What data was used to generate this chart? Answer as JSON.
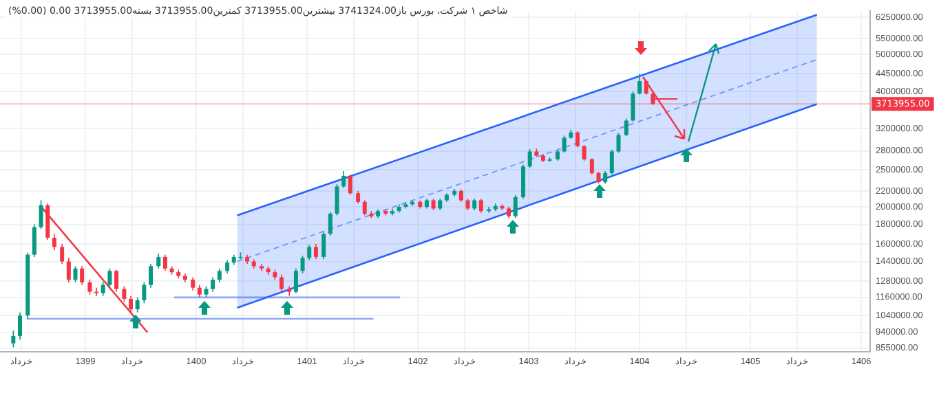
{
  "chart_data": {
    "type": "candlestick",
    "title": "شاخص ۱ شرکت، بورس باز3741324.00 بیشترین3713955.00 کمترین3713955.00 بسته3713955.00 0.00 (0.00%)",
    "x": [
      1398.35,
      1398.41,
      1398.48,
      1398.54,
      1398.6,
      1398.66,
      1398.72,
      1398.79,
      1398.85,
      1398.91,
      1398.97,
      1399.04,
      1399.1,
      1399.16,
      1399.22,
      1399.28,
      1399.35,
      1399.41,
      1399.47,
      1399.53,
      1399.59,
      1399.66,
      1399.72,
      1399.78,
      1399.84,
      1399.9,
      1399.97,
      1400.03,
      1400.09,
      1400.15,
      1400.21,
      1400.28,
      1400.34,
      1400.4,
      1400.46,
      1400.52,
      1400.59,
      1400.65,
      1400.71,
      1400.77,
      1400.84,
      1400.9,
      1400.96,
      1401.02,
      1401.08,
      1401.15,
      1401.21,
      1401.27,
      1401.33,
      1401.39,
      1401.46,
      1401.52,
      1401.58,
      1401.64,
      1401.71,
      1401.77,
      1401.83,
      1401.89,
      1401.95,
      1402.02,
      1402.08,
      1402.14,
      1402.2,
      1402.26,
      1402.33,
      1402.39,
      1402.45,
      1402.51,
      1402.57,
      1402.64,
      1402.7,
      1402.76,
      1402.82,
      1402.88,
      1402.95,
      1403.01,
      1403.07,
      1403.13,
      1403.19,
      1403.26,
      1403.32,
      1403.38,
      1403.44,
      1403.5,
      1403.57,
      1403.63,
      1403.69,
      1403.75,
      1403.81,
      1403.88,
      1403.94,
      1404.0,
      1404.06,
      1404.12
    ],
    "ohlc": [
      [
        880000,
        950000,
        860000,
        920000
      ],
      [
        920000,
        1060000,
        900000,
        1040000
      ],
      [
        1040000,
        1520000,
        1020000,
        1500000
      ],
      [
        1500000,
        1800000,
        1480000,
        1770000
      ],
      [
        1770000,
        2080000,
        1750000,
        2020000
      ],
      [
        2020000,
        2040000,
        1640000,
        1660000
      ],
      [
        1660000,
        1700000,
        1540000,
        1570000
      ],
      [
        1570000,
        1600000,
        1420000,
        1440000
      ],
      [
        1440000,
        1470000,
        1270000,
        1290000
      ],
      [
        1290000,
        1400000,
        1270000,
        1380000
      ],
      [
        1380000,
        1400000,
        1250000,
        1270000
      ],
      [
        1270000,
        1290000,
        1180000,
        1200000
      ],
      [
        1200000,
        1230000,
        1170000,
        1190000
      ],
      [
        1190000,
        1270000,
        1170000,
        1250000
      ],
      [
        1250000,
        1380000,
        1230000,
        1360000
      ],
      [
        1360000,
        1370000,
        1200000,
        1220000
      ],
      [
        1220000,
        1240000,
        1130000,
        1150000
      ],
      [
        1150000,
        1170000,
        1060000,
        1080000
      ],
      [
        1080000,
        1160000,
        1060000,
        1140000
      ],
      [
        1140000,
        1270000,
        1120000,
        1250000
      ],
      [
        1250000,
        1420000,
        1230000,
        1400000
      ],
      [
        1400000,
        1510000,
        1380000,
        1480000
      ],
      [
        1480000,
        1500000,
        1360000,
        1380000
      ],
      [
        1380000,
        1400000,
        1330000,
        1350000
      ],
      [
        1350000,
        1370000,
        1300000,
        1320000
      ],
      [
        1320000,
        1340000,
        1270000,
        1290000
      ],
      [
        1290000,
        1310000,
        1210000,
        1230000
      ],
      [
        1230000,
        1250000,
        1160000,
        1180000
      ],
      [
        1180000,
        1240000,
        1160000,
        1220000
      ],
      [
        1220000,
        1310000,
        1200000,
        1290000
      ],
      [
        1290000,
        1380000,
        1270000,
        1360000
      ],
      [
        1360000,
        1450000,
        1340000,
        1430000
      ],
      [
        1430000,
        1500000,
        1410000,
        1480000
      ],
      [
        1480000,
        1520000,
        1460000,
        1480000
      ],
      [
        1480000,
        1500000,
        1420000,
        1440000
      ],
      [
        1440000,
        1460000,
        1380000,
        1400000
      ],
      [
        1400000,
        1420000,
        1360000,
        1380000
      ],
      [
        1380000,
        1400000,
        1330000,
        1350000
      ],
      [
        1350000,
        1370000,
        1290000,
        1310000
      ],
      [
        1310000,
        1330000,
        1200000,
        1220000
      ],
      [
        1220000,
        1240000,
        1170000,
        1200000
      ],
      [
        1200000,
        1380000,
        1190000,
        1360000
      ],
      [
        1360000,
        1490000,
        1340000,
        1470000
      ],
      [
        1470000,
        1590000,
        1450000,
        1570000
      ],
      [
        1570000,
        1600000,
        1460000,
        1480000
      ],
      [
        1480000,
        1720000,
        1460000,
        1700000
      ],
      [
        1700000,
        1940000,
        1680000,
        1920000
      ],
      [
        1920000,
        2290000,
        1900000,
        2260000
      ],
      [
        2260000,
        2480000,
        2240000,
        2410000
      ],
      [
        2410000,
        2430000,
        2150000,
        2170000
      ],
      [
        2170000,
        2200000,
        2040000,
        2060000
      ],
      [
        2060000,
        2080000,
        1900000,
        1920000
      ],
      [
        1920000,
        1950000,
        1870000,
        1890000
      ],
      [
        1890000,
        1970000,
        1870000,
        1950000
      ],
      [
        1950000,
        1970000,
        1900000,
        1920000
      ],
      [
        1920000,
        1980000,
        1900000,
        1950000
      ],
      [
        1950000,
        2030000,
        1930000,
        2000000
      ],
      [
        2000000,
        2060000,
        1980000,
        2030000
      ],
      [
        2030000,
        2080000,
        2010000,
        2060000
      ],
      [
        2060000,
        2080000,
        1980000,
        2000000
      ],
      [
        2000000,
        2100000,
        1980000,
        2080000
      ],
      [
        2080000,
        2100000,
        1960000,
        1980000
      ],
      [
        1980000,
        2100000,
        1960000,
        2080000
      ],
      [
        2080000,
        2170000,
        2060000,
        2150000
      ],
      [
        2150000,
        2230000,
        2130000,
        2200000
      ],
      [
        2200000,
        2220000,
        2060000,
        2080000
      ],
      [
        2080000,
        2100000,
        1960000,
        1980000
      ],
      [
        1980000,
        2100000,
        1960000,
        2080000
      ],
      [
        2080000,
        2100000,
        1930000,
        1950000
      ],
      [
        1950000,
        2000000,
        1930000,
        1970000
      ],
      [
        1970000,
        2040000,
        1950000,
        2010000
      ],
      [
        2010000,
        2030000,
        1960000,
        1980000
      ],
      [
        1980000,
        2000000,
        1870000,
        1890000
      ],
      [
        1890000,
        2150000,
        1870000,
        2120000
      ],
      [
        2120000,
        2580000,
        2100000,
        2550000
      ],
      [
        2550000,
        2830000,
        2530000,
        2790000
      ],
      [
        2790000,
        2840000,
        2700000,
        2720000
      ],
      [
        2720000,
        2750000,
        2620000,
        2640000
      ],
      [
        2640000,
        2690000,
        2620000,
        2660000
      ],
      [
        2660000,
        2820000,
        2640000,
        2790000
      ],
      [
        2790000,
        3070000,
        2770000,
        3030000
      ],
      [
        3030000,
        3180000,
        3010000,
        3130000
      ],
      [
        3130000,
        3150000,
        2860000,
        2880000
      ],
      [
        2880000,
        2900000,
        2640000,
        2660000
      ],
      [
        2660000,
        2680000,
        2430000,
        2450000
      ],
      [
        2450000,
        2470000,
        2300000,
        2320000
      ],
      [
        2320000,
        2480000,
        2300000,
        2450000
      ],
      [
        2450000,
        2820000,
        2430000,
        2790000
      ],
      [
        2790000,
        3120000,
        2770000,
        3080000
      ],
      [
        3080000,
        3400000,
        3060000,
        3360000
      ],
      [
        3360000,
        4000000,
        3340000,
        3950000
      ],
      [
        3950000,
        4450000,
        3930000,
        4260000
      ],
      [
        4260000,
        4300000,
        3930000,
        3950000
      ],
      [
        3950000,
        3990000,
        3690000,
        3713955
      ]
    ],
    "series": [
      {
        "type": "line",
        "x": [
          1400.37,
          1405.6
        ],
        "values": [
          1440000,
          4850000
        ],
        "lower": [
          1090000,
          3710000
        ],
        "upper": [
          1900000,
          6350000
        ],
        "color": "#2962ff",
        "line_style": "dashed"
      },
      {
        "type": "line",
        "x": [
          1400.37,
          1405.6
        ],
        "values": [
          1900000,
          6350000
        ],
        "color": "#2962ff"
      },
      {
        "type": "line",
        "x": [
          1400.37,
          1405.6
        ],
        "values": [
          1090000,
          3710000
        ],
        "color": "#2962ff"
      },
      {
        "type": "line",
        "x": [
          1398.59,
          1399.56
        ],
        "values": [
          2020000,
          940000
        ],
        "color": "#f23645"
      },
      {
        "type": "line",
        "x": [
          1398.47,
          1401.6
        ],
        "values": [
          1020000,
          1020000
        ],
        "color": "#8fa8f5"
      },
      {
        "type": "line",
        "x": [
          1399.8,
          1401.84
        ],
        "values": [
          1160000,
          1160000
        ],
        "color": "#8fa8f5"
      }
    ],
    "xlim": [
      1398.23,
      1406.08
    ],
    "xticks": [
      {
        "value": 1398.42,
        "label": "خرداد"
      },
      1399,
      {
        "value": 1399.42,
        "label": "خرداد"
      },
      1400,
      {
        "value": 1400.42,
        "label": "خرداد"
      },
      1401,
      {
        "value": 1401.42,
        "label": "خرداد"
      },
      1402,
      {
        "value": 1402.42,
        "label": "خرداد"
      },
      1403,
      {
        "value": 1403.42,
        "label": "خرداد"
      },
      1404,
      {
        "value": 1404.42,
        "label": "خرداد"
      },
      1405,
      {
        "value": 1405.42,
        "label": "خرداد"
      },
      1406
    ],
    "ylim": [
      835000,
      6500000
    ],
    "yticks": [
      {
        "value": 855000,
        "label": "855000.00"
      },
      {
        "value": 940000,
        "label": "940000.00"
      },
      {
        "value": 1040000,
        "label": "1040000.00"
      },
      {
        "value": 1160000,
        "label": "1160000.00"
      },
      {
        "value": 1280000,
        "label": "1280000.00"
      },
      {
        "value": 1440000,
        "label": "1440000.00"
      },
      {
        "value": 1600000,
        "label": "1600000.00"
      },
      {
        "value": 1800000,
        "label": "1800000.00"
      },
      {
        "value": 2000000,
        "label": "2000000.00"
      },
      {
        "value": 2200000,
        "label": "2200000.00"
      },
      {
        "value": 2500000,
        "label": "2500000.00"
      },
      {
        "value": 2800000,
        "label": "2800000.00"
      },
      {
        "value": 3200000,
        "label": "3200000.00"
      },
      {
        "value": 4000000,
        "label": "4000000.00"
      },
      {
        "value": 4450000,
        "label": "4450000.00"
      },
      {
        "value": 5000000,
        "label": "5000000.00"
      },
      {
        "value": 5500000,
        "label": "5500000.00"
      },
      {
        "value": 6250000,
        "label": "6250000.00"
      }
    ],
    "log": true,
    "grid": true,
    "ref_lines": [
      {
        "axis": "y",
        "value": 3713955,
        "label": "3713955.00",
        "color": "#f23645"
      }
    ]
  }
}
